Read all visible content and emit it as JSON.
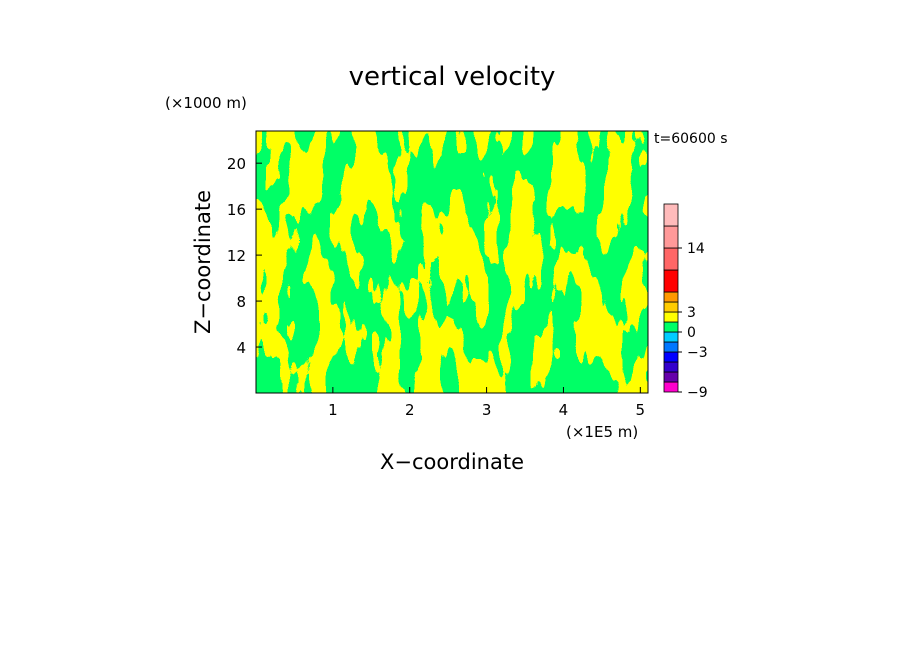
{
  "chart_data": {
    "type": "heatmap",
    "title": "vertical velocity",
    "xlabel": "X−coordinate",
    "ylabel": "Z−coordinate",
    "x_unit": "(×1E5 m)",
    "y_unit": "(×1000 m)",
    "time_label": "t=60600 s",
    "xlim": [
      0,
      5.1
    ],
    "ylim": [
      0,
      22.8
    ],
    "x_ticks": [
      1,
      2,
      3,
      4,
      5
    ],
    "x_tick_labels": [
      "1",
      "2",
      "3",
      "4",
      "5"
    ],
    "y_ticks": [
      4,
      8,
      12,
      16,
      20
    ],
    "y_tick_labels": [
      "4",
      "8",
      "12",
      "16",
      "20"
    ],
    "field_colors": [
      "#ffff00",
      "#00ff66"
    ],
    "colorbar": {
      "segments": [
        {
          "lo": -9,
          "hi": -7.5,
          "color": "#ff00cc"
        },
        {
          "lo": -7.5,
          "hi": -6,
          "color": "#6600aa"
        },
        {
          "lo": -6,
          "hi": -4.5,
          "color": "#3300cc"
        },
        {
          "lo": -4.5,
          "hi": -3,
          "color": "#0000ff"
        },
        {
          "lo": -3,
          "hi": -1.5,
          "color": "#0077ff"
        },
        {
          "lo": -1.5,
          "hi": 0,
          "color": "#00ccff"
        },
        {
          "lo": 0,
          "hi": 1.5,
          "color": "#00ff66"
        },
        {
          "lo": 1.5,
          "hi": 3,
          "color": "#ffff00"
        },
        {
          "lo": 3,
          "hi": 4.5,
          "color": "#ffcc00"
        },
        {
          "lo": 4.5,
          "hi": 6,
          "color": "#ff9900"
        },
        {
          "lo": 6,
          "hi": 10,
          "color": "#ff0000"
        },
        {
          "lo": 10,
          "hi": 14,
          "color": "#ff6666"
        },
        {
          "lo": 14,
          "hi": 18,
          "color": "#ff9999"
        },
        {
          "lo": 18,
          "hi": 22,
          "color": "#ffbbbb"
        }
      ],
      "tick_labels": [
        "14",
        "3",
        "0",
        "−3",
        "−9"
      ]
    }
  }
}
